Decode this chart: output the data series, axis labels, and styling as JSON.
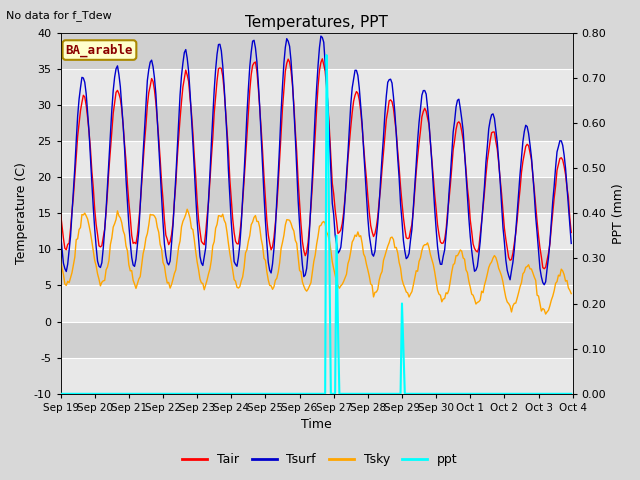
{
  "title": "Temperatures, PPT",
  "xlabel": "Time",
  "ylabel_left": "Temperature (C)",
  "ylabel_right": "PPT (mm)",
  "ylim_left": [
    -10,
    40
  ],
  "ylim_right": [
    0.0,
    0.8
  ],
  "fig_bg_color": "#d8d8d8",
  "plot_bg_color": "#d8d8d8",
  "note_text": "No data for f_Tdew",
  "box_label": "BA_arable",
  "box_color": "#ffffcc",
  "box_edge_color": "#aa8800",
  "box_text_color": "#8b0000",
  "xtick_labels": [
    "Sep 19",
    "Sep 20",
    "Sep 21",
    "Sep 22",
    "Sep 23",
    "Sep 24",
    "Sep 25",
    "Sep 26",
    "Sep 27",
    "Sep 28",
    "Sep 29",
    "Sep 30",
    "Oct 1",
    "Oct 2",
    "Oct 3",
    "Oct 4"
  ],
  "tair_color": "#ff0000",
  "tsurf_color": "#0000cc",
  "tsky_color": "#ffa500",
  "ppt_color": "#00ffff",
  "legend_labels": [
    "Tair",
    "Tsurf",
    "Tsky",
    "ppt"
  ],
  "grid_color": "#ffffff",
  "yticks_left": [
    -10,
    -5,
    0,
    5,
    10,
    15,
    20,
    25,
    30,
    35,
    40
  ],
  "yticks_right": [
    0.0,
    0.1,
    0.2,
    0.3,
    0.4,
    0.5,
    0.6,
    0.7,
    0.8
  ],
  "band_colors": [
    "#e8e8e8",
    "#d0d0d0"
  ]
}
